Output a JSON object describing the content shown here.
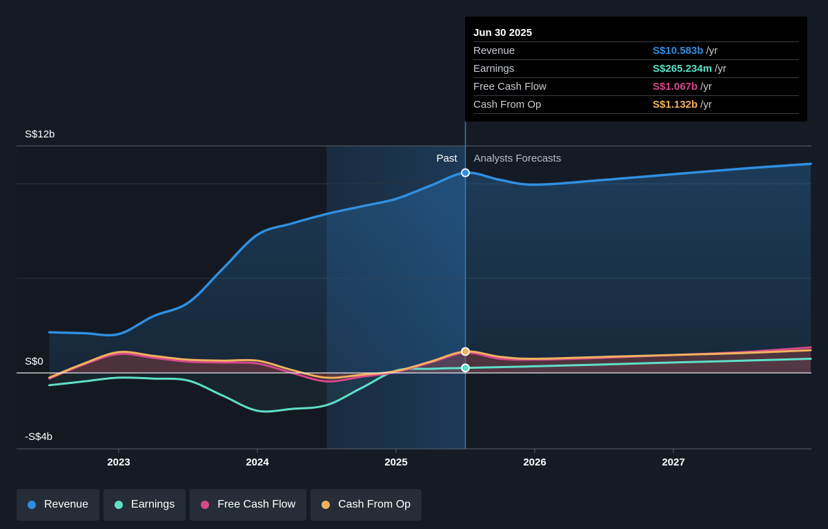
{
  "tooltip": {
    "date": "Jun 30 2025",
    "rows": [
      {
        "name": "Revenue",
        "value": "S$10.583b",
        "unit": "/yr",
        "color": "#2f8fe0"
      },
      {
        "name": "Earnings",
        "value": "S$265.234m",
        "unit": "/yr",
        "color": "#5ee0c8"
      },
      {
        "name": "Free Cash Flow",
        "value": "S$1.067b",
        "unit": "/yr",
        "color": "#d6488c"
      },
      {
        "name": "Cash From Op",
        "value": "S$1.132b",
        "unit": "/yr",
        "color": "#f0b25e"
      }
    ]
  },
  "regions": {
    "past": "Past",
    "forecast": "Analysts Forecasts"
  },
  "legend": [
    {
      "label": "Revenue",
      "color": "#2f8fe0"
    },
    {
      "label": "Earnings",
      "color": "#5ee0c8"
    },
    {
      "label": "Free Cash Flow",
      "color": "#d6488c"
    },
    {
      "label": "Cash From Op",
      "color": "#f0b25e"
    }
  ],
  "chart_data": {
    "type": "line",
    "y_tick_labels": [
      "S$12b",
      "S$0",
      "-S$4b"
    ],
    "ylim": [
      -4,
      12
    ],
    "x_tick_labels": [
      "2023",
      "2024",
      "2025",
      "2026",
      "2027"
    ],
    "xlim": [
      2022.5,
      2027.99
    ],
    "past_end": 2025.5,
    "highlight_start": 2024.5,
    "grid": true,
    "series": [
      {
        "name": "Revenue",
        "color": "#2f8fe0",
        "fill": true,
        "x": [
          2022.5,
          2022.75,
          2023.0,
          2023.25,
          2023.5,
          2023.75,
          2024.0,
          2024.25,
          2024.5,
          2024.75,
          2025.0,
          2025.25,
          2025.5,
          2025.75,
          2026.0,
          2026.5,
          2027.0,
          2027.5,
          2027.99
        ],
        "y": [
          2.15,
          2.1,
          2.05,
          3.0,
          3.7,
          5.5,
          7.3,
          7.9,
          8.4,
          8.8,
          9.2,
          9.9,
          10.58,
          10.2,
          9.95,
          10.2,
          10.5,
          10.8,
          11.05
        ]
      },
      {
        "name": "Earnings",
        "color": "#5ee0c8",
        "fill": true,
        "x": [
          2022.5,
          2022.75,
          2023.0,
          2023.25,
          2023.5,
          2023.75,
          2024.0,
          2024.25,
          2024.5,
          2024.75,
          2025.0,
          2025.25,
          2025.5,
          2026.0,
          2026.5,
          2027.0,
          2027.5,
          2027.99
        ],
        "y": [
          -0.65,
          -0.45,
          -0.25,
          -0.3,
          -0.4,
          -1.2,
          -2.0,
          -1.9,
          -1.7,
          -0.8,
          0.12,
          0.22,
          0.265,
          0.35,
          0.45,
          0.55,
          0.65,
          0.75
        ]
      },
      {
        "name": "Free Cash Flow",
        "color": "#d6488c",
        "fill": true,
        "x": [
          2022.5,
          2022.75,
          2023.0,
          2023.25,
          2023.5,
          2023.75,
          2024.0,
          2024.25,
          2024.5,
          2024.75,
          2025.0,
          2025.25,
          2025.5,
          2025.75,
          2026.0,
          2026.5,
          2027.0,
          2027.5,
          2027.99
        ],
        "y": [
          -0.3,
          0.45,
          1.0,
          0.8,
          0.6,
          0.55,
          0.5,
          0.0,
          -0.45,
          -0.2,
          0.05,
          0.55,
          1.067,
          0.75,
          0.7,
          0.8,
          0.95,
          1.1,
          1.35
        ]
      },
      {
        "name": "Cash From Op",
        "color": "#f0b25e",
        "fill": true,
        "x": [
          2022.5,
          2022.75,
          2023.0,
          2023.25,
          2023.5,
          2023.75,
          2024.0,
          2024.25,
          2024.5,
          2024.75,
          2025.0,
          2025.25,
          2025.5,
          2025.75,
          2026.0,
          2026.5,
          2027.0,
          2027.5,
          2027.99
        ],
        "y": [
          -0.25,
          0.5,
          1.1,
          0.9,
          0.7,
          0.65,
          0.65,
          0.15,
          -0.25,
          -0.1,
          0.1,
          0.6,
          1.132,
          0.85,
          0.75,
          0.85,
          0.95,
          1.05,
          1.2
        ]
      }
    ]
  }
}
